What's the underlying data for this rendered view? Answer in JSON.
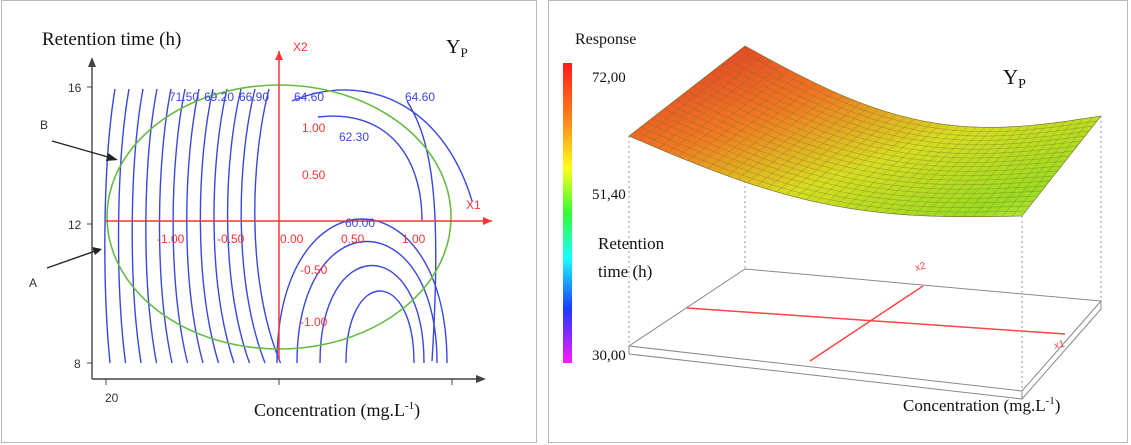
{
  "left": {
    "ylabel": "Retention time (h)",
    "xlabel_main": "Concentration (mg.L",
    "xlabel_sup": "-1",
    "xlabel_end": ")",
    "title_main": "Y",
    "title_sub": "P",
    "yticks": [
      "16",
      "12",
      "8"
    ],
    "xticks": [
      "20"
    ],
    "coded_x_ticks": [
      "-1.00",
      "-0.50",
      "0.00",
      "0.50",
      "1.00"
    ],
    "coded_y_ticks": [
      "1.00",
      "0.50",
      "-0.50",
      "-1.00"
    ],
    "x1_label": "X1",
    "x2_label": "X2",
    "contour_labels": [
      "71.50",
      "69.20",
      "66.90",
      "64.60",
      "64.60",
      "62.30",
      "60.00"
    ],
    "annotation_a": "A",
    "annotation_b": "B",
    "colors": {
      "contour": "#3a46e0",
      "axis": "#ff3333",
      "circle": "#66bb44",
      "frame": "#444444"
    }
  },
  "right": {
    "response_label": "Response",
    "colorbar_ticks": [
      "72,00",
      "51,40",
      "30,00"
    ],
    "ylabel_line1": "Retention",
    "ylabel_line2": "time (h)",
    "title_main": "Y",
    "title_sub": "P",
    "xlabel_main": "Concentration  (mg.L",
    "xlabel_sup": "-1",
    "xlabel_end": ")",
    "x1_label": "x1",
    "x2_label": "x2",
    "colors": {
      "high": "#e0332a",
      "mid": "#ffdd22",
      "low": "#77dd22",
      "grid": "#888888",
      "floor_axis": "#ff4444"
    }
  },
  "chart_data": [
    {
      "type": "contour",
      "title": "YP",
      "xlabel": "Concentration (mg.L-1)",
      "ylabel": "Retention time (h)",
      "y_ticks": [
        16,
        12,
        8
      ],
      "x_ticks": [
        20
      ],
      "coded_axes": {
        "x1": [
          -1.0,
          -0.5,
          0.0,
          0.5,
          1.0
        ],
        "x2": [
          1.0,
          0.5,
          -0.5,
          -1.0
        ]
      },
      "contour_levels": [
        71.5,
        69.2,
        66.9,
        64.6,
        62.3,
        60.0
      ]
    },
    {
      "type": "surface",
      "title": "YP",
      "zlabel": "Response",
      "xlabel": "Concentration (mg.L-1)",
      "ylabel": "Retention time (h)",
      "z_range": [
        30.0,
        72.0
      ],
      "colorbar_ticks": [
        72.0,
        51.4,
        30.0
      ],
      "x_axis": "x1",
      "y_axis": "x2"
    }
  ]
}
